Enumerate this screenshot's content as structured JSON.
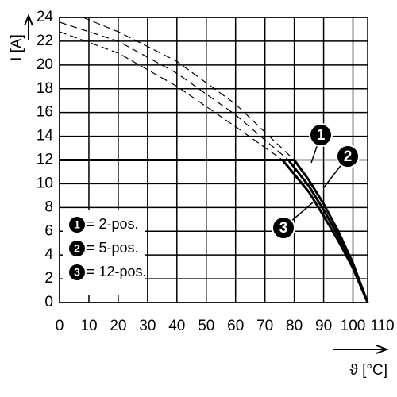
{
  "chart_data": {
    "type": "line",
    "x_label": "ϑ [°C]",
    "y_label": "I [A]",
    "xlim": [
      0,
      105
    ],
    "xticks": [
      0,
      10,
      20,
      30,
      40,
      50,
      60,
      70,
      80,
      90,
      100,
      110
    ],
    "ylim": [
      0,
      24
    ],
    "yticks": [
      0,
      2,
      4,
      6,
      8,
      10,
      12,
      14,
      16,
      18,
      20,
      22,
      24
    ],
    "grid": true,
    "legend": "bottom-left",
    "series": [
      {
        "name": "= 2-pos.",
        "marker": "1",
        "color": "#000000",
        "x": [
          0,
          80,
          85,
          90,
          95,
          100,
          105
        ],
        "values": [
          12,
          12,
          10.3,
          8.3,
          6,
          3.3,
          0
        ]
      },
      {
        "name": "= 5-pos.",
        "marker": "2",
        "color": "#000000",
        "x": [
          0,
          78,
          85,
          90,
          95,
          100,
          105
        ],
        "values": [
          12,
          12,
          9.8,
          7.8,
          5.6,
          3.1,
          0
        ]
      },
      {
        "name": "= 12-pos.",
        "marker": "3",
        "color": "#000000",
        "x": [
          0,
          76,
          85,
          90,
          95,
          100,
          105
        ],
        "values": [
          12,
          12,
          9.3,
          7.3,
          5.2,
          2.9,
          0
        ]
      }
    ],
    "limits": [
      {
        "x": [
          8,
          20,
          40,
          60,
          80
        ],
        "values": [
          24,
          22.8,
          20.3,
          16.7,
          12
        ]
      },
      {
        "x": [
          0,
          20,
          40,
          60,
          78
        ],
        "values": [
          23.6,
          22,
          19.3,
          15.8,
          12
        ]
      },
      {
        "x": [
          0,
          20,
          40,
          60,
          76
        ],
        "values": [
          22.8,
          21,
          18.2,
          14.8,
          12
        ]
      }
    ]
  }
}
